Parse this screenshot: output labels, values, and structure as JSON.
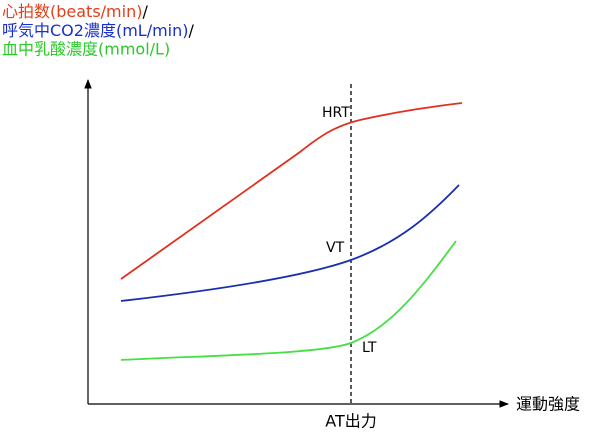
{
  "legend": [
    {
      "label": "心拍数(beats/min)",
      "separator": "/"
    },
    {
      "label": "呼気中CO2濃度(mL/min)",
      "separator": "/"
    },
    {
      "label": "血中乳酸濃度(mmol/L)"
    }
  ],
  "annotations": {
    "hrt": "HRT",
    "vt": "VT",
    "lt": "LT"
  },
  "axes": {
    "x_label": "運動強度",
    "threshold_label": "AT出力"
  }
}
